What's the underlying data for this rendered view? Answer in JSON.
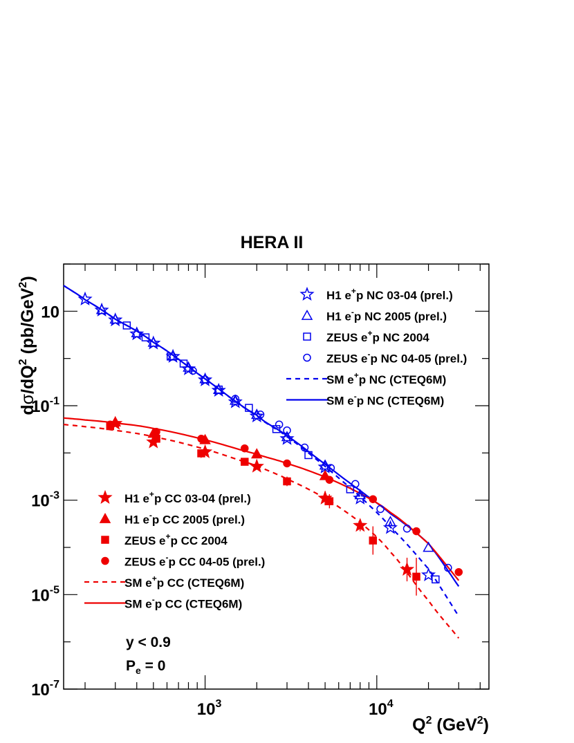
{
  "colors": {
    "nc": "#0000ee",
    "cc": "#ee0000",
    "axis": "#000000"
  },
  "chart_data": {
    "type": "scatter",
    "title": "HERA II",
    "xlabel": {
      "main": "Q",
      "sup": "2",
      "unit": " (GeV",
      "sup2": "2",
      "close": ")"
    },
    "ylabel": {
      "d": "d",
      "sigma": "σ",
      "slash": "/dQ",
      "sup": "2",
      "unit": " (pb/GeV",
      "sup2": "2",
      "close": ")"
    },
    "xscale": "log",
    "yscale": "log",
    "xlim": [
      150,
      45000
    ],
    "ylim": [
      1e-07,
      100
    ],
    "x_ticks": [
      {
        "base": "10",
        "exp": "3",
        "value": 1000
      },
      {
        "base": "10",
        "exp": "4",
        "value": 10000
      }
    ],
    "y_ticks": [
      {
        "base": "10",
        "exp": "",
        "value": 10
      },
      {
        "base": "10",
        "exp": "-1",
        "value": 0.1
      },
      {
        "base": "10",
        "exp": "-3",
        "value": 0.001
      },
      {
        "base": "10",
        "exp": "-5",
        "value": 1e-05
      },
      {
        "base": "10",
        "exp": "-7",
        "value": 1e-07
      }
    ],
    "annotations": {
      "line1": "y < 0.9",
      "line2_main": "P",
      "line2_sub": "e",
      "line2_rest": " = 0"
    },
    "legend_nc": [
      {
        "pre": "H1 e",
        "sup": "+",
        "post": "p NC 03-04 (prel.)",
        "marker": "star-open",
        "color": "nc"
      },
      {
        "pre": "H1 e",
        "sup": "-",
        "post": "p NC 2005 (prel.)",
        "marker": "triangle-open",
        "color": "nc"
      },
      {
        "pre": "ZEUS e",
        "sup": "+",
        "post": "p NC 2004",
        "marker": "square-open",
        "color": "nc"
      },
      {
        "pre": "ZEUS e",
        "sup": "-",
        "post": "p NC 04-05 (prel.)",
        "marker": "circle-open",
        "color": "nc"
      },
      {
        "pre": "SM e",
        "sup": "+",
        "post": "p NC (CTEQ6M)",
        "marker": "dashed",
        "color": "nc"
      },
      {
        "pre": "SM e",
        "sup": "-",
        "post": "p NC (CTEQ6M)",
        "marker": "solid",
        "color": "nc"
      }
    ],
    "legend_cc": [
      {
        "pre": "H1 e",
        "sup": "+",
        "post": "p CC 03-04 (prel.)",
        "marker": "star-filled",
        "color": "cc"
      },
      {
        "pre": "H1 e",
        "sup": "-",
        "post": "p CC 2005 (prel.)",
        "marker": "triangle-filled",
        "color": "cc"
      },
      {
        "pre": "ZEUS e",
        "sup": "+",
        "post": "p CC 2004",
        "marker": "square-filled",
        "color": "cc"
      },
      {
        "pre": "ZEUS e",
        "sup": "-",
        "post": "p CC 04-05 (prel.)",
        "marker": "circle-filled",
        "color": "cc"
      },
      {
        "pre": "SM e",
        "sup": "+",
        "post": "p CC (CTEQ6M)",
        "marker": "dashed",
        "color": "cc"
      },
      {
        "pre": "SM e",
        "sup": "-",
        "post": "p CC (CTEQ6M)",
        "marker": "solid",
        "color": "cc"
      }
    ],
    "series": [
      {
        "name": "H1 e+p NC 03-04 (prel.)",
        "marker": "star-open",
        "color": "nc",
        "x": [
          200,
          250,
          300,
          400,
          500,
          650,
          800,
          1000,
          1200,
          1500,
          2000,
          3000,
          5000,
          8000,
          12000,
          20000
        ],
        "y": [
          18,
          10.5,
          6.5,
          3.3,
          2.1,
          1.1,
          0.6,
          0.35,
          0.21,
          0.12,
          0.06,
          0.02,
          0.005,
          0.0011,
          0.00026,
          2.6e-05
        ]
      },
      {
        "name": "H1 e-p NC 2005 (prel.)",
        "marker": "triangle-open",
        "color": "nc",
        "x": [
          250,
          300,
          400,
          500,
          650,
          800,
          1000,
          1200,
          1500,
          2000,
          3000,
          5000,
          8000,
          12000,
          20000
        ],
        "y": [
          10.8,
          6.8,
          3.5,
          2.2,
          1.15,
          0.65,
          0.37,
          0.22,
          0.13,
          0.065,
          0.022,
          0.0055,
          0.0013,
          0.00035,
          0.0001
        ]
      },
      {
        "name": "ZEUS e+p NC 2004",
        "marker": "square-open",
        "color": "nc",
        "x": [
          350,
          450,
          630,
          750,
          1200,
          1800,
          2600,
          4000,
          7000,
          22000
        ],
        "y": [
          5,
          2.8,
          1.1,
          0.78,
          0.22,
          0.09,
          0.032,
          0.009,
          0.0017,
          2.1e-05
        ]
      },
      {
        "name": "ZEUS e-p NC 04-05 (prel.)",
        "marker": "circle-open",
        "color": "nc",
        "x": [
          850,
          1000,
          1500,
          2100,
          2700,
          3000,
          3800,
          5400,
          7500,
          10500,
          15000,
          26000
        ],
        "y": [
          0.55,
          0.36,
          0.14,
          0.065,
          0.04,
          0.03,
          0.013,
          0.0048,
          0.0022,
          0.00065,
          0.00025,
          3.7e-05
        ]
      },
      {
        "name": "H1 e+p CC 03-04 (prel.)",
        "marker": "star-filled",
        "color": "cc",
        "x": [
          300,
          500,
          1000,
          2000,
          5000,
          8000,
          15000
        ],
        "y": [
          0.042,
          0.017,
          0.0105,
          0.0052,
          0.0011,
          0.00029,
          3.4e-05
        ],
        "err": [
          0,
          0,
          0,
          0,
          0.15,
          0.12,
          0.25
        ]
      },
      {
        "name": "H1 e-p CC 2005 (prel.)",
        "marker": "triangle-filled",
        "color": "cc",
        "x": [
          300,
          500,
          1000,
          2000,
          5000
        ],
        "y": [
          0.045,
          0.026,
          0.019,
          0.0095,
          0.0033
        ]
      },
      {
        "name": "ZEUS e+p CC 2004",
        "marker": "square-filled",
        "color": "cc",
        "x": [
          280,
          520,
          950,
          1700,
          3000,
          5300,
          9500,
          17000
        ],
        "y": [
          0.037,
          0.02,
          0.0098,
          0.0065,
          0.0025,
          0.00095,
          0.00014,
          2.4e-05
        ],
        "err": [
          0,
          0,
          0,
          0,
          0.1,
          0.15,
          0.3,
          0.4
        ]
      },
      {
        "name": "ZEUS e-p CC 04-05 (prel.)",
        "marker": "circle-filled",
        "color": "cc",
        "x": [
          280,
          520,
          950,
          1700,
          3000,
          5300,
          9500,
          17000,
          30000
        ],
        "y": [
          0.04,
          0.028,
          0.02,
          0.0125,
          0.006,
          0.0027,
          0.00105,
          0.00022,
          3e-05
        ]
      }
    ],
    "curves": [
      {
        "name": "SM e+p NC (CTEQ6M)",
        "style": "dashed",
        "color": "nc",
        "x": [
          150,
          200,
          300,
          500,
          1000,
          2000,
          3000,
          5000,
          8000,
          12000,
          20000,
          30000
        ],
        "y": [
          35,
          17.5,
          6.8,
          2.2,
          0.37,
          0.062,
          0.022,
          0.0052,
          0.0012,
          0.00027,
          3.5e-05,
          3.5e-06
        ]
      },
      {
        "name": "SM e-p NC (CTEQ6M)",
        "style": "solid",
        "color": "nc",
        "x": [
          150,
          200,
          300,
          500,
          1000,
          2000,
          3000,
          5000,
          8000,
          12000,
          20000,
          30000
        ],
        "y": [
          35,
          17.5,
          6.8,
          2.2,
          0.37,
          0.063,
          0.023,
          0.0058,
          0.0016,
          0.00052,
          0.00012,
          1.5e-05
        ]
      },
      {
        "name": "SM e+p CC (CTEQ6M)",
        "style": "dashed",
        "color": "cc",
        "x": [
          150,
          200,
          300,
          500,
          1000,
          2000,
          3000,
          5000,
          8000,
          12000,
          20000,
          30000
        ],
        "y": [
          0.04,
          0.036,
          0.03,
          0.022,
          0.012,
          0.0054,
          0.0028,
          0.0011,
          0.00034,
          8e-05,
          7.5e-06,
          1.2e-06
        ]
      },
      {
        "name": "SM e-p CC (CTEQ6M)",
        "style": "solid",
        "color": "cc",
        "x": [
          150,
          200,
          300,
          500,
          1000,
          2000,
          3000,
          5000,
          8000,
          12000,
          20000,
          30000
        ],
        "y": [
          0.055,
          0.05,
          0.043,
          0.033,
          0.019,
          0.0095,
          0.006,
          0.0031,
          0.0014,
          0.00055,
          0.00012,
          2e-05
        ]
      }
    ]
  }
}
